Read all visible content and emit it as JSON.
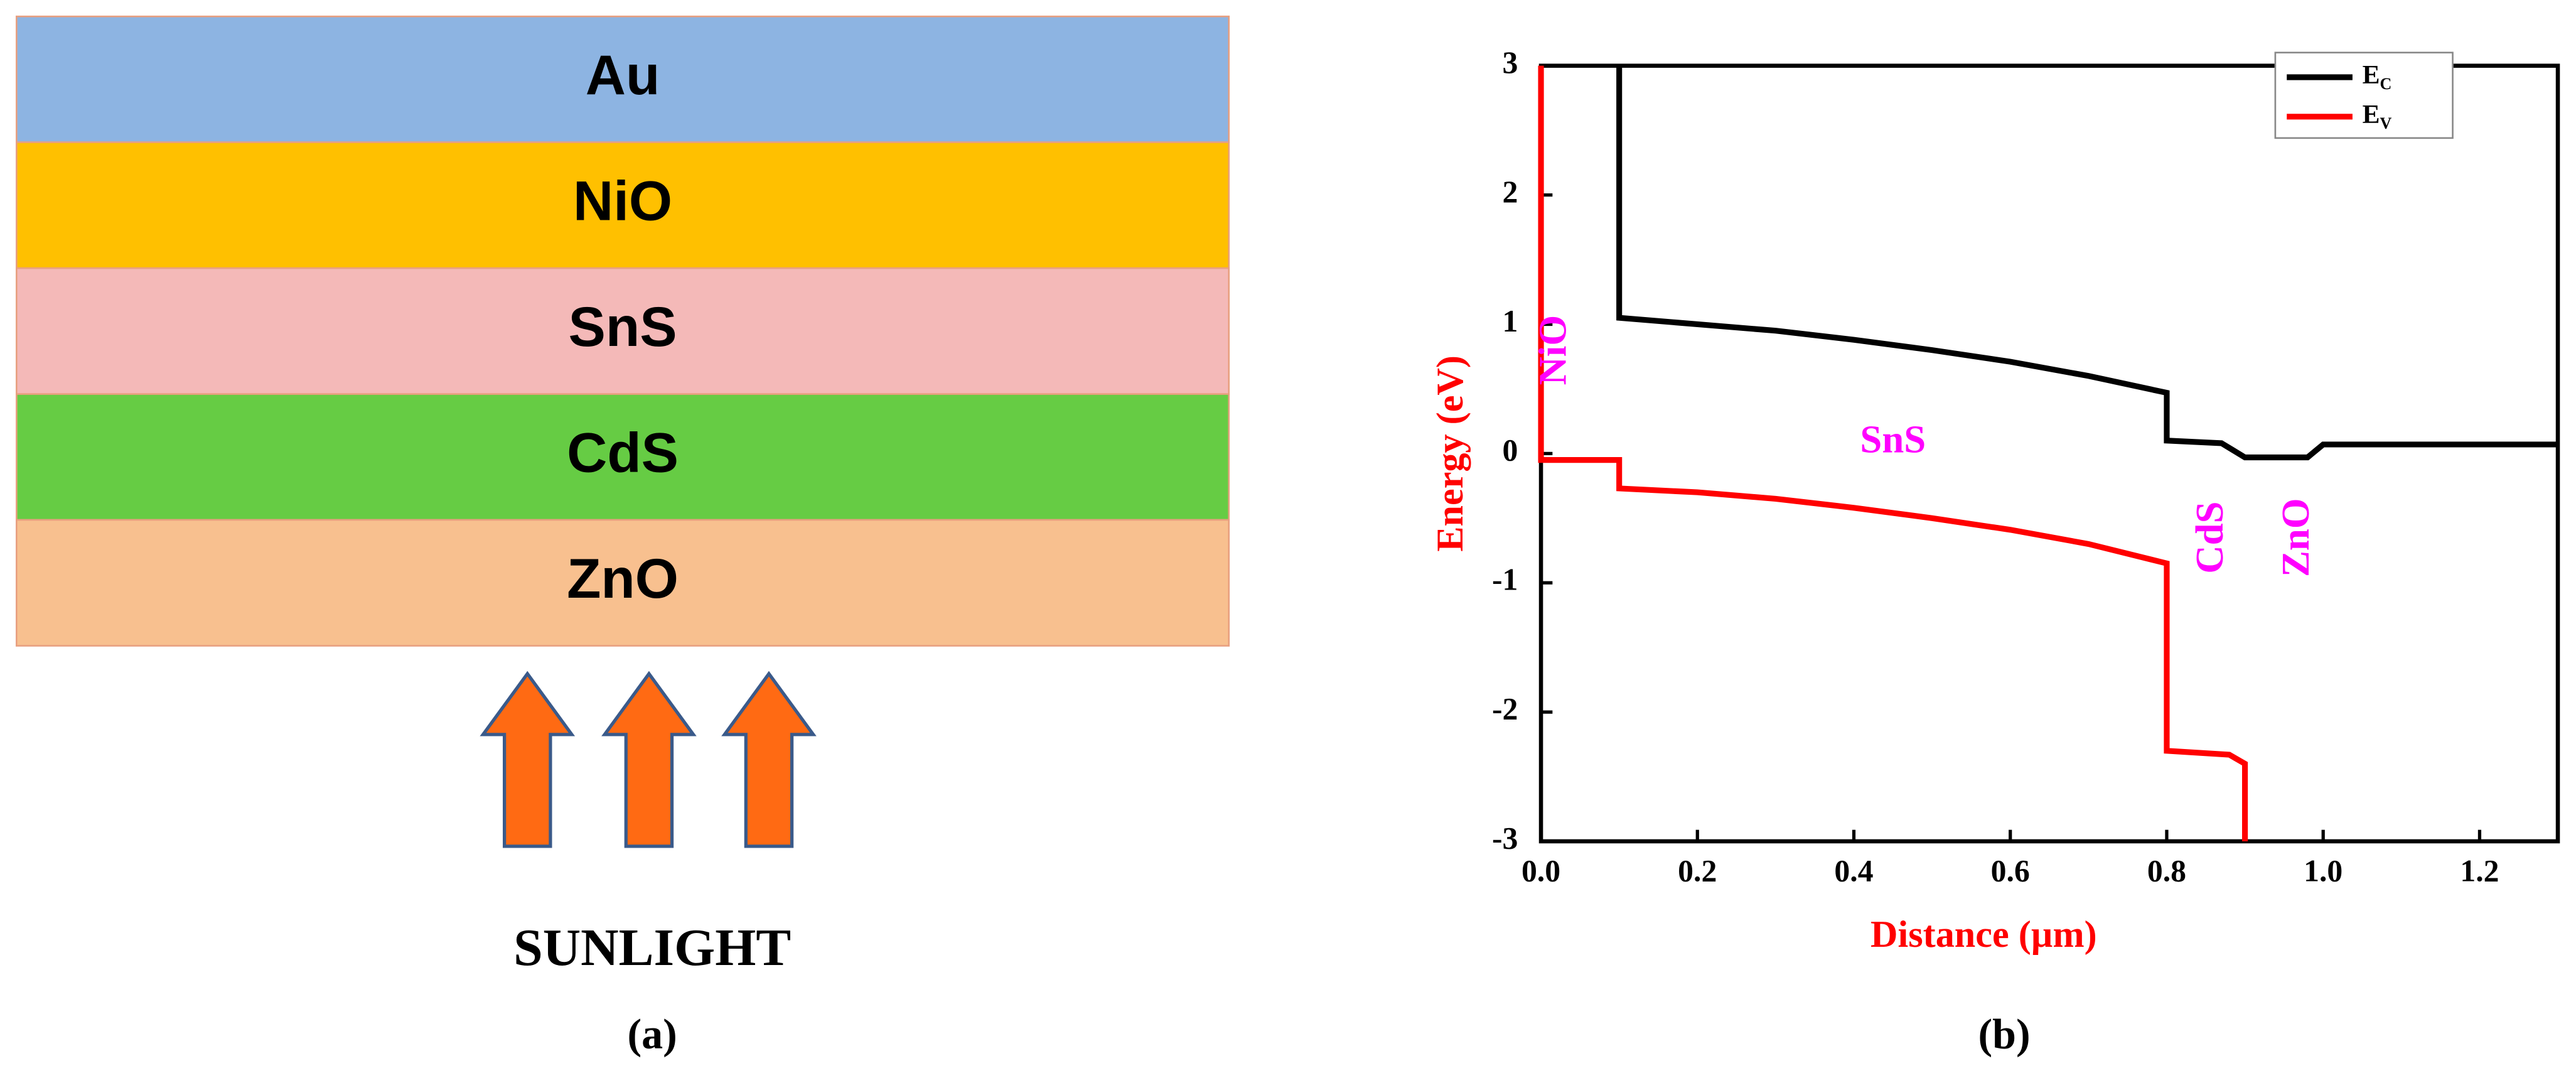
{
  "diagram": {
    "layers": [
      {
        "label": "Au",
        "color": "#8db4e2"
      },
      {
        "label": "NiO",
        "color": "#ffc000"
      },
      {
        "label": "SnS",
        "color": "#f4b9b8"
      },
      {
        "label": "CdS",
        "color": "#66cc44"
      },
      {
        "label": "ZnO",
        "color": "#f8c08f"
      }
    ],
    "arrow_color": "#ff6a13",
    "label": "SUNLIGHT",
    "caption": "(a)"
  },
  "chart_data": {
    "type": "line",
    "x_label": "Distance (µm)",
    "y_label": "Energy (eV)",
    "caption": "(b)",
    "xlim": [
      0,
      1.3
    ],
    "xticks": [
      {
        "value": 0,
        "label": "0.0"
      },
      0.2,
      0.4,
      0.6,
      0.8,
      {
        "value": 1,
        "label": "1.0"
      },
      1.2
    ],
    "ylim": [
      -3,
      3
    ],
    "yticks": [
      -3,
      -2,
      -1,
      0,
      1,
      2,
      3
    ],
    "legend": "upper right",
    "series": [
      {
        "name": "EC",
        "color": "#000000",
        "x": [
          0.1,
          0.1,
          0.2,
          0.3,
          0.4,
          0.5,
          0.6,
          0.7,
          0.8,
          0.8,
          0.87,
          0.9,
          0.98,
          1.0,
          1.3
        ],
        "values": [
          3,
          1.05,
          1.0,
          0.95,
          0.88,
          0.8,
          0.71,
          0.6,
          0.47,
          0.1,
          0.08,
          -0.03,
          -0.03,
          0.07,
          0.07
        ]
      },
      {
        "name": "EV",
        "color": "#ff0000",
        "x": [
          0,
          0,
          0.1,
          0.1,
          0.2,
          0.3,
          0.4,
          0.5,
          0.6,
          0.7,
          0.8,
          0.8,
          0.88,
          0.9,
          0.9
        ],
        "values": [
          3,
          -0.05,
          -0.05,
          -0.27,
          -0.3,
          -0.35,
          -0.42,
          -0.5,
          -0.59,
          -0.7,
          -0.85,
          -2.3,
          -2.33,
          -2.4,
          -3
        ]
      }
    ],
    "annotations": [
      {
        "text": "NiO",
        "x": 0.02,
        "y": 0.8,
        "rotate": true
      },
      {
        "text": "SnS",
        "x": 0.45,
        "y": 0.08,
        "rotate": false
      },
      {
        "text": "CdS",
        "x": 0.86,
        "y": -0.65,
        "rotate": true
      },
      {
        "text": "ZnO",
        "x": 0.97,
        "y": -0.65,
        "rotate": true
      }
    ],
    "annotation_color": "#ff00ff",
    "label_color": "#ff0000"
  }
}
